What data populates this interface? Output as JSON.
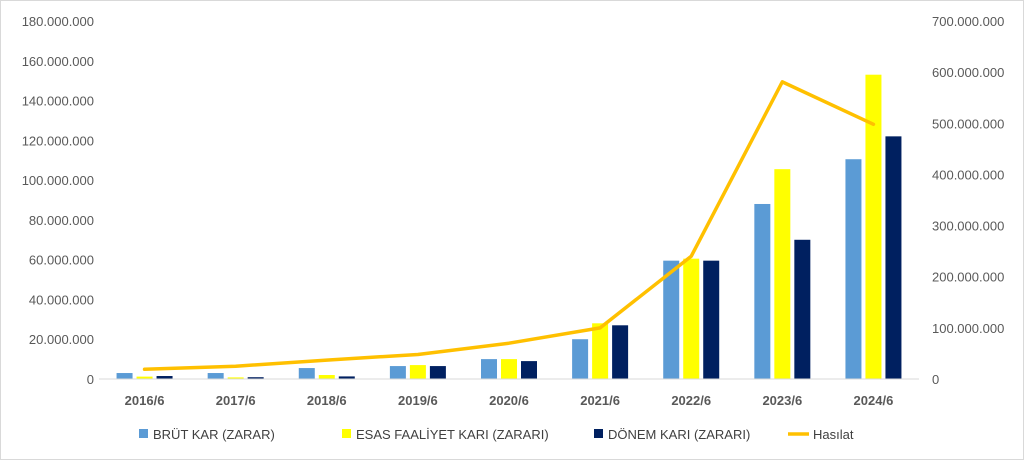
{
  "chart_data": {
    "type": "bar",
    "title": "",
    "categories": [
      "2016/6",
      "2017/6",
      "2018/6",
      "2019/6",
      "2020/6",
      "2021/6",
      "2022/6",
      "2023/6",
      "2024/6"
    ],
    "series": [
      {
        "name": "BRÜT KAR (ZARAR)",
        "type": "bar",
        "axis": "left",
        "color": "#5b9bd5",
        "values": [
          3000000,
          3000000,
          5500000,
          6500000,
          10000000,
          20000000,
          59500000,
          88000000,
          110500000
        ]
      },
      {
        "name": "ESAS FAALİYET KARI (ZARARI)",
        "type": "bar",
        "axis": "left",
        "color": "#ffff00",
        "values": [
          1200000,
          800000,
          2000000,
          7000000,
          10000000,
          28000000,
          60500000,
          105500000,
          153000000
        ]
      },
      {
        "name": "DÖNEM KARI (ZARARI)",
        "type": "bar",
        "axis": "left",
        "color": "#002060",
        "values": [
          1500000,
          900000,
          1300000,
          6500000,
          9000000,
          27000000,
          59500000,
          70000000,
          122000000
        ]
      },
      {
        "name": "Hasılat",
        "type": "line",
        "axis": "right",
        "color": "#ffc000",
        "values": [
          19000000,
          25000000,
          37000000,
          48000000,
          70000000,
          100000000,
          240000000,
          581000000,
          498000000
        ]
      }
    ],
    "y_left": {
      "min": 0,
      "max": 180000000,
      "ticks": [
        0,
        20000000,
        40000000,
        60000000,
        80000000,
        100000000,
        120000000,
        140000000,
        160000000,
        180000000
      ],
      "tick_labels": [
        "0",
        "20.000.000",
        "40.000.000",
        "60.000.000",
        "80.000.000",
        "100.000.000",
        "120.000.000",
        "140.000.000",
        "160.000.000",
        "180.000.000"
      ]
    },
    "y_right": {
      "min": 0,
      "max": 700000000,
      "ticks": [
        0,
        100000000,
        200000000,
        300000000,
        400000000,
        500000000,
        600000000,
        700000000
      ],
      "tick_labels": [
        "0",
        "100.000.000",
        "200.000.000",
        "300.000.000",
        "400.000.000",
        "500.000.000",
        "600.000.000",
        "700.000.000"
      ]
    },
    "grid": false,
    "legend_position": "bottom"
  }
}
